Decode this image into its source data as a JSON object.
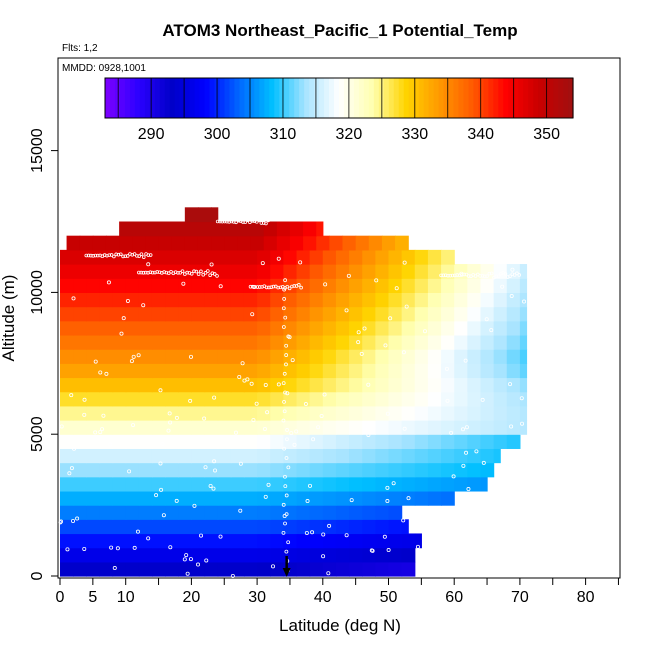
{
  "chart_data": {
    "type": "heatmap",
    "title": "ATOM3 Northeast_Pacific_1 Potential_Temp",
    "subtitle_flights": "Flts: 1,2",
    "subtitle_dates": "MMDD: 0928,1001",
    "xlabel": "Latitude (deg N)",
    "ylabel": "Altitude (m)",
    "xlim": [
      0,
      85
    ],
    "ylim": [
      0,
      17500
    ],
    "x_ticks": [
      0,
      5,
      10,
      20,
      30,
      40,
      50,
      60,
      70,
      80
    ],
    "y_ticks": [
      0,
      5000,
      10000,
      15000
    ],
    "colorbar": {
      "min": 283,
      "max": 354,
      "ticks": [
        290,
        300,
        310,
        320,
        330,
        340,
        350
      ],
      "colors": [
        "#7f00ff",
        "#2b00ff",
        "#0000c8",
        "#0000ff",
        "#0066ff",
        "#00bfff",
        "#a8e4ff",
        "#ffffff",
        "#ffffb0",
        "#ffd400",
        "#ff9900",
        "#ff5a00",
        "#ff0000",
        "#c80000",
        "#a01010"
      ],
      "grid": "off"
    },
    "cell_size": {
      "lat_deg": 2,
      "alt_m": 500
    },
    "sample_marker_color": "#ffffff",
    "field_lat_extents_by_alt": [
      [
        0,
        0,
        54
      ],
      [
        500,
        0,
        54
      ],
      [
        1000,
        0,
        55
      ],
      [
        1500,
        0,
        53
      ],
      [
        2000,
        0,
        52
      ],
      [
        2500,
        0,
        60
      ],
      [
        3000,
        0,
        65
      ],
      [
        3500,
        0,
        66
      ],
      [
        4000,
        0,
        67
      ],
      [
        4500,
        0,
        70
      ],
      [
        5000,
        0,
        71
      ],
      [
        5500,
        0,
        71
      ],
      [
        6000,
        0,
        71
      ],
      [
        6500,
        0,
        71
      ],
      [
        7000,
        0,
        71
      ],
      [
        7500,
        0,
        71
      ],
      [
        8000,
        0,
        71
      ],
      [
        8500,
        0,
        71
      ],
      [
        9000,
        0,
        71
      ],
      [
        9500,
        0,
        71
      ],
      [
        10000,
        0,
        71
      ],
      [
        10500,
        0,
        71
      ],
      [
        11000,
        0,
        60
      ],
      [
        11500,
        1,
        53
      ],
      [
        12000,
        9,
        40
      ],
      [
        12500,
        19,
        24
      ]
    ],
    "marker": {
      "lat": 34.5,
      "alt": 0,
      "shape": "arrow"
    }
  }
}
